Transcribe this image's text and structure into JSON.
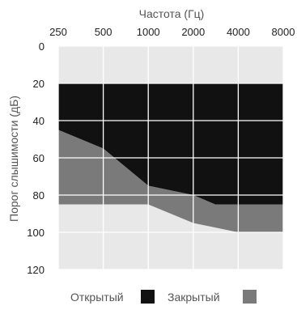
{
  "chart_data": {
    "type": "area",
    "xlabel": "Частота (Гц)",
    "ylabel": "Порог слышимости (дБ)",
    "x_ticks": [
      "250",
      "500",
      "1000",
      "2000",
      "4000",
      "8000"
    ],
    "y_ticks": [
      0,
      20,
      40,
      60,
      80,
      100,
      120
    ],
    "ylim": [
      0,
      120
    ],
    "y_inverted": true,
    "x_scale": "log2",
    "grid": true,
    "legend_position": "bottom",
    "background_color": "#e8e8e8",
    "series": [
      {
        "name": "Открытый",
        "color": "#111111",
        "top": {
          "x": [
            "250",
            "8000"
          ],
          "y": [
            20,
            20
          ]
        },
        "bottom": {
          "x": [
            "250",
            "500",
            "1000",
            "8000"
          ],
          "y": [
            45,
            55,
            75,
            85
          ]
        }
      },
      {
        "name": "Закрытый",
        "color": "#7a7a7a",
        "top_points": [
          {
            "x": 250,
            "y": 45
          },
          {
            "x": 500,
            "y": 55
          },
          {
            "x": 1000,
            "y": 75
          },
          {
            "x": 2000,
            "y": 80
          },
          {
            "x": 2800,
            "y": 85
          },
          {
            "x": 8000,
            "y": 85
          }
        ],
        "bottom_points": [
          {
            "x": 250,
            "y": 85
          },
          {
            "x": 500,
            "y": 85
          },
          {
            "x": 1000,
            "y": 85
          },
          {
            "x": 2000,
            "y": 95
          },
          {
            "x": 4000,
            "y": 100
          },
          {
            "x": 8000,
            "y": 100
          }
        ]
      }
    ],
    "band_upper_light_to": 20,
    "band_lower_light_from_points": [
      {
        "x": 250,
        "y": 85
      },
      {
        "x": 1000,
        "y": 85
      },
      {
        "x": 2000,
        "y": 95
      },
      {
        "x": 4000,
        "y": 100
      },
      {
        "x": 8000,
        "y": 100
      }
    ]
  }
}
